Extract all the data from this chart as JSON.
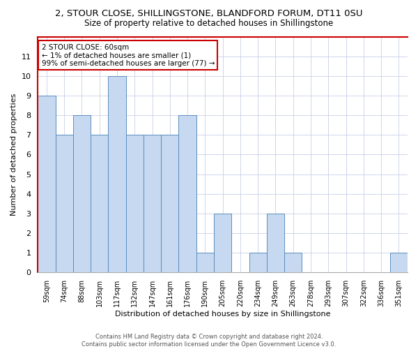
{
  "title_line1": "2, STOUR CLOSE, SHILLINGSTONE, BLANDFORD FORUM, DT11 0SU",
  "title_line2": "Size of property relative to detached houses in Shillingstone",
  "xlabel": "Distribution of detached houses by size in Shillingstone",
  "ylabel": "Number of detached properties",
  "categories": [
    "59sqm",
    "74sqm",
    "88sqm",
    "103sqm",
    "117sqm",
    "132sqm",
    "147sqm",
    "161sqm",
    "176sqm",
    "190sqm",
    "205sqm",
    "220sqm",
    "234sqm",
    "249sqm",
    "263sqm",
    "278sqm",
    "293sqm",
    "307sqm",
    "322sqm",
    "336sqm",
    "351sqm"
  ],
  "values": [
    9,
    7,
    8,
    7,
    10,
    7,
    7,
    7,
    8,
    1,
    3,
    0,
    1,
    3,
    1,
    0,
    0,
    0,
    0,
    0,
    1
  ],
  "bar_color": "#c6d9f0",
  "bar_edge_color": "#5b8dbe",
  "annotation_text": "2 STOUR CLOSE: 60sqm\n← 1% of detached houses are smaller (1)\n99% of semi-detached houses are larger (77) →",
  "annotation_box_edge_color": "#cc0000",
  "ylim": [
    0,
    12
  ],
  "yticks": [
    0,
    1,
    2,
    3,
    4,
    5,
    6,
    7,
    8,
    9,
    10,
    11,
    12
  ],
  "footer_line1": "Contains HM Land Registry data © Crown copyright and database right 2024.",
  "footer_line2": "Contains public sector information licensed under the Open Government Licence v3.0.",
  "background_color": "#ffffff",
  "grid_color": "#c8d0e8",
  "red_color": "#cc0000",
  "title1_fontsize": 9.5,
  "title2_fontsize": 8.5
}
